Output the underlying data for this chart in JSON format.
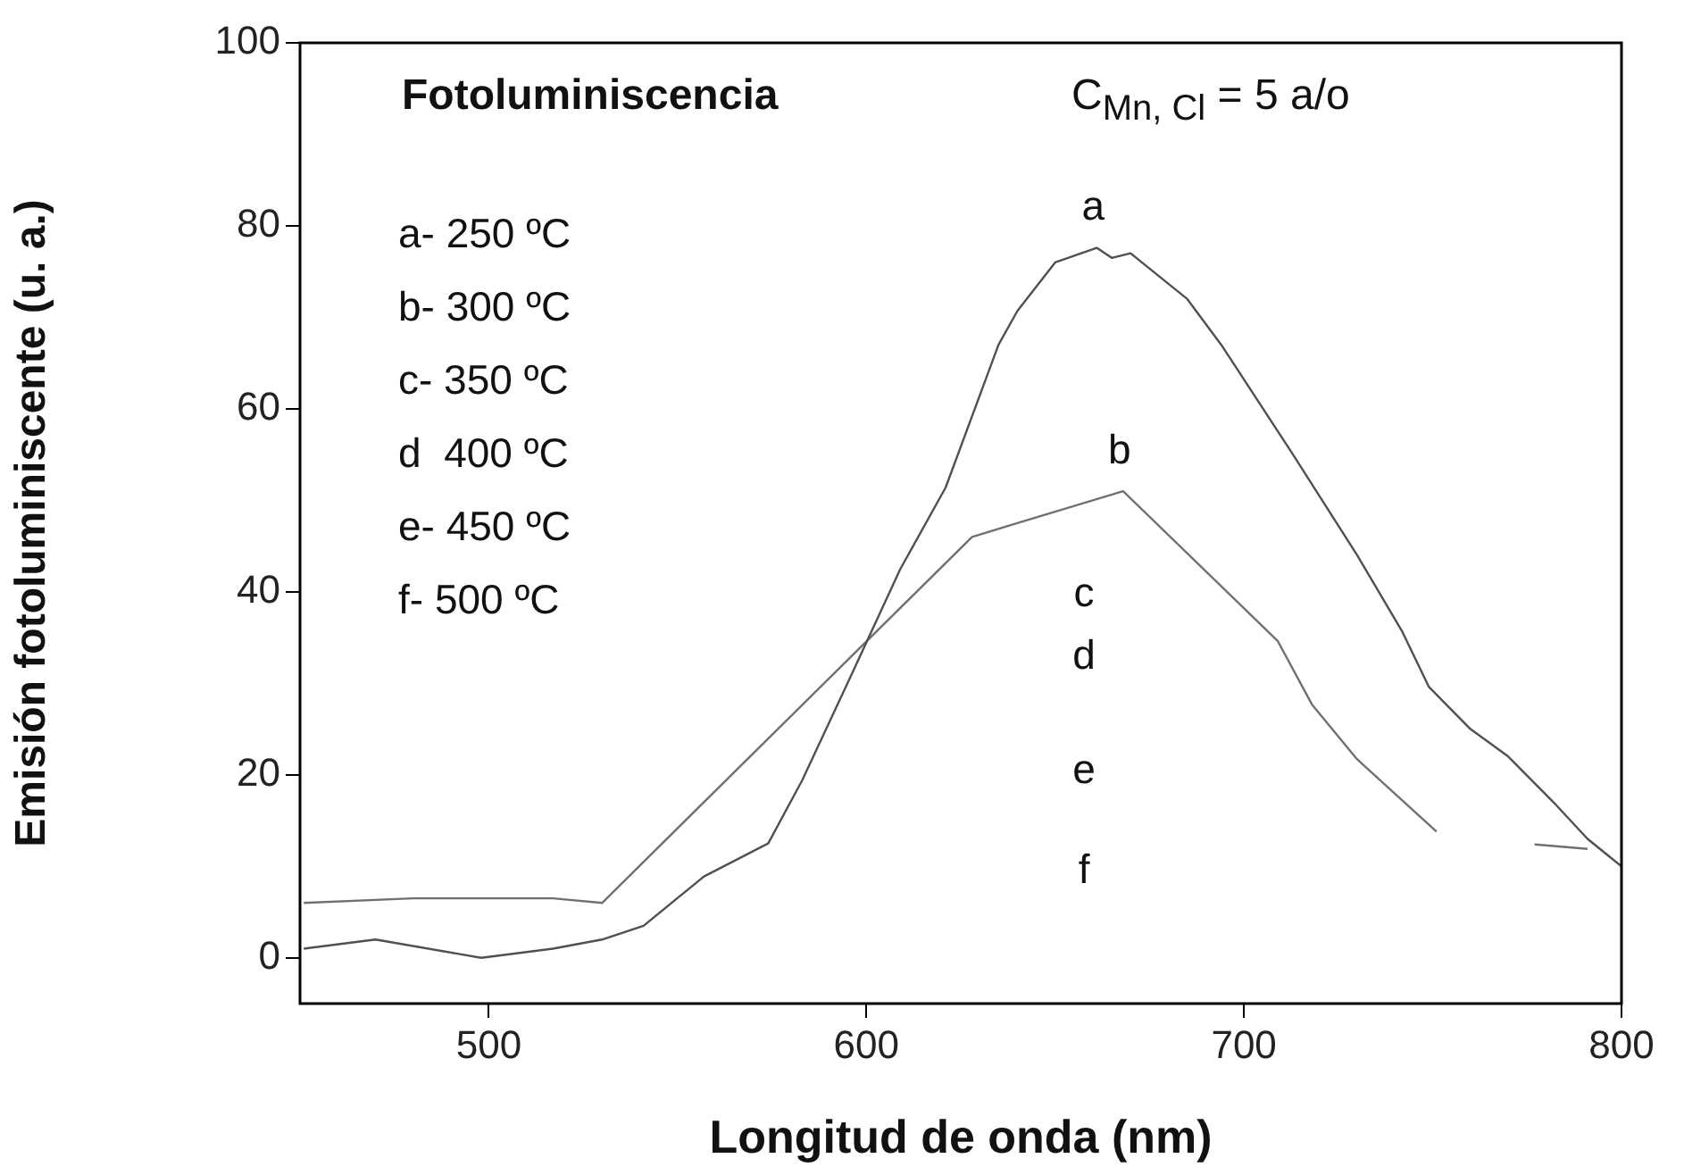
{
  "chart_data": {
    "type": "line",
    "title": "Fotoluminiscencia",
    "subtitle": "C$_{Mn, Cl}$ = 5 a/o",
    "xlabel": "Longitud de onda (nm)",
    "ylabel": "Emisión fotoluminiscente (u. a.)",
    "xlim": [
      450,
      800
    ],
    "xticks": [
      500,
      600,
      700,
      800
    ],
    "ylim": [
      -5,
      100
    ],
    "yticks": [
      0,
      20,
      40,
      60,
      80,
      100
    ],
    "grid": false,
    "legend": false,
    "marker": "none",
    "line_style": "solid",
    "series": [
      {
        "name": "a",
        "color": "#505050",
        "x": [
          451,
          470,
          498,
          517,
          530,
          541,
          557,
          574,
          583,
          595,
          609,
          621,
          635,
          640,
          650,
          661,
          665,
          670,
          685,
          694,
          713,
          730,
          742,
          749,
          760,
          770,
          782,
          791,
          800
        ],
        "values": [
          1,
          2,
          0,
          1,
          2,
          3.5,
          8.9,
          12.5,
          19.4,
          30,
          42.5,
          51.4,
          67,
          70.7,
          76,
          77.6,
          76.5,
          77,
          72,
          67,
          55,
          44,
          35.6,
          29.6,
          25,
          22,
          17,
          13,
          10
        ]
      },
      {
        "name": "b",
        "color": "#707070",
        "x": [
          451,
          480,
          517,
          530,
          628,
          639,
          668,
          709,
          718,
          730,
          751,
          761,
          777,
          791
        ],
        "values": [
          6,
          6.5,
          6.5,
          6,
          46,
          47.4,
          51,
          34.6,
          27.7,
          21.7,
          13.8,
          null,
          12.4,
          11.9
        ]
      }
    ],
    "annotations": [
      "a- 250 ºC",
      "b- 300 ºC",
      "c- 350 ºC",
      "d  400 ºC",
      "e- 450 ºC",
      "f- 500 ºC",
      "c",
      "d",
      "e",
      "f"
    ]
  }
}
